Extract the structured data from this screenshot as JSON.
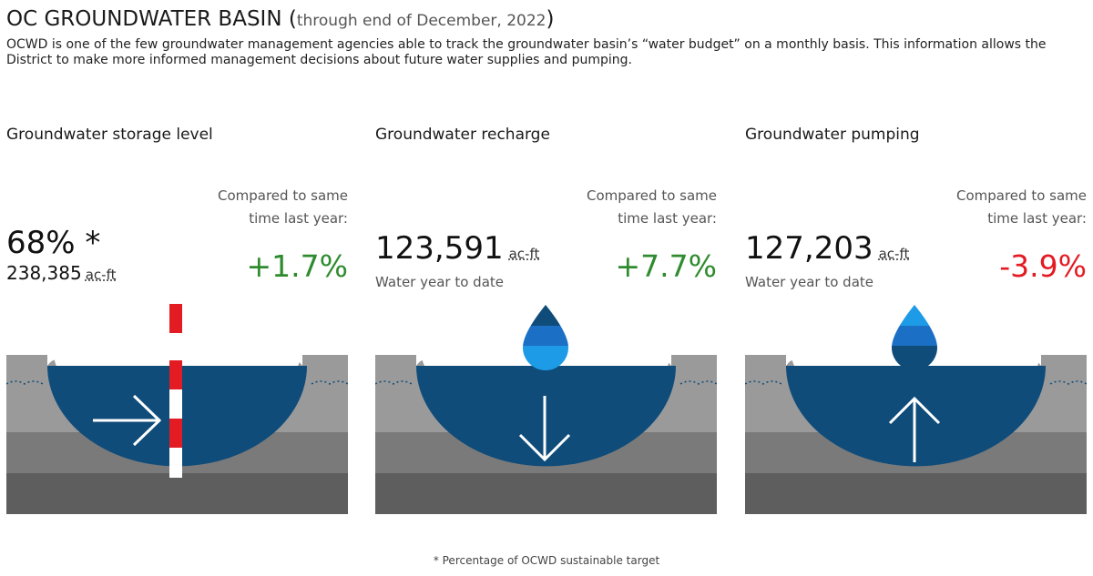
{
  "header": {
    "title": "OC GROUNDWATER BASIN",
    "open_paren": "(",
    "subtitle": "through end of December, 2022",
    "close_paren": ")",
    "description": "OCWD is one of the few groundwater management agencies able to track the groundwater basin’s “water budget” on a monthly basis. This information allows the District to make more informed management decisions about future water supplies and pumping."
  },
  "panels": {
    "storage": {
      "title": "Groundwater storage level",
      "main_value": "68% *",
      "sub_value": "238,385",
      "unit": "ac-ft",
      "compare_label": "Compared to same time last year:",
      "change": "+1.7%"
    },
    "recharge": {
      "title": "Groundwater recharge",
      "main_value": "123,591",
      "unit": "ac-ft",
      "caption": "Water year to date",
      "compare_label": "Compared to same time last year:",
      "change": "+7.7%"
    },
    "pumping": {
      "title": "Groundwater pumping",
      "main_value": "127,203",
      "unit": "ac-ft",
      "caption": "Water year to date",
      "compare_label": "Compared to same time last year:",
      "change": "-3.9%"
    }
  },
  "footnote": "* Percentage of OCWD sustainable target",
  "colors": {
    "positive": "#2e8b2e",
    "negative": "#e31b23",
    "water": "#0f4c7a",
    "ground_light": "#9a9a9a",
    "ground_mid": "#7a7a7a",
    "ground_dark": "#5e5e5e"
  }
}
